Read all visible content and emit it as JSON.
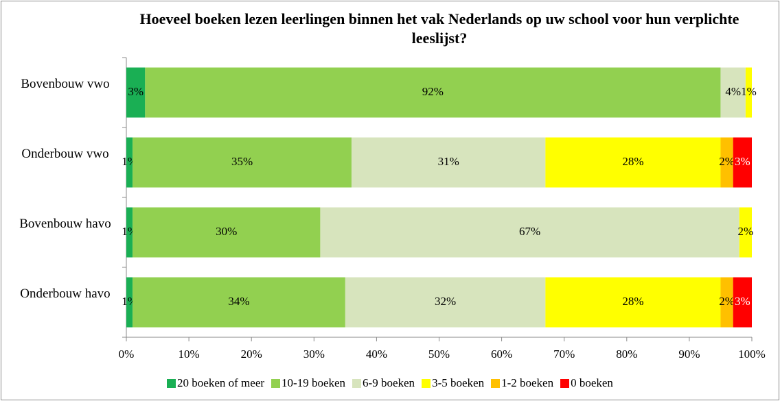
{
  "chart_data": {
    "type": "stacked-bar-horizontal",
    "title": "Hoeveel boeken lezen leerlingen binnen het vak Nederlands op uw school voor hun verplichte leeslijst?",
    "categories": [
      "Bovenbouw vwo",
      "Onderbouw vwo",
      "Bovenbouw havo",
      "Onderbouw havo"
    ],
    "series": [
      {
        "name": "20 boeken of meer",
        "color": "#1aaf54",
        "values": [
          3,
          1,
          1,
          1
        ],
        "value_labels": [
          "3%",
          "1%",
          "1%",
          "1%"
        ]
      },
      {
        "name": "10-19 boeken",
        "color": "#92d050",
        "values": [
          92,
          35,
          30,
          34
        ],
        "value_labels": [
          "92%",
          "35%",
          "30%",
          "34%"
        ]
      },
      {
        "name": "6-9 boeken",
        "color": "#d7e4bd",
        "values": [
          4,
          31,
          67,
          32
        ],
        "value_labels": [
          "4%",
          "31%",
          "67%",
          "32%"
        ]
      },
      {
        "name": "3-5 boeken",
        "color": "#ffff00",
        "values": [
          1,
          28,
          2,
          28
        ],
        "value_labels": [
          "1%",
          "28%",
          "2%",
          "28%"
        ]
      },
      {
        "name": "1-2  boeken",
        "color": "#ffc000",
        "values": [
          0,
          2,
          0,
          2
        ],
        "value_labels": [
          null,
          "2%",
          null,
          "2%"
        ]
      },
      {
        "name": "0 boeken",
        "color": "#ff0000",
        "values": [
          0,
          3,
          0,
          3
        ],
        "value_labels": [
          null,
          "3%",
          null,
          "3%"
        ]
      }
    ],
    "xlim": [
      0,
      100
    ],
    "xticks": [
      {
        "value": 0,
        "label": "0%"
      },
      {
        "value": 10,
        "label": "10%"
      },
      {
        "value": 20,
        "label": "20%"
      },
      {
        "value": 30,
        "label": "30%"
      },
      {
        "value": 40,
        "label": "40%"
      },
      {
        "value": 50,
        "label": "50%"
      },
      {
        "value": 60,
        "label": "60%"
      },
      {
        "value": 70,
        "label": "70%"
      },
      {
        "value": 80,
        "label": "80%"
      },
      {
        "value": 90,
        "label": "90%"
      },
      {
        "value": 100,
        "label": "100%"
      }
    ],
    "legend": "bottom"
  }
}
